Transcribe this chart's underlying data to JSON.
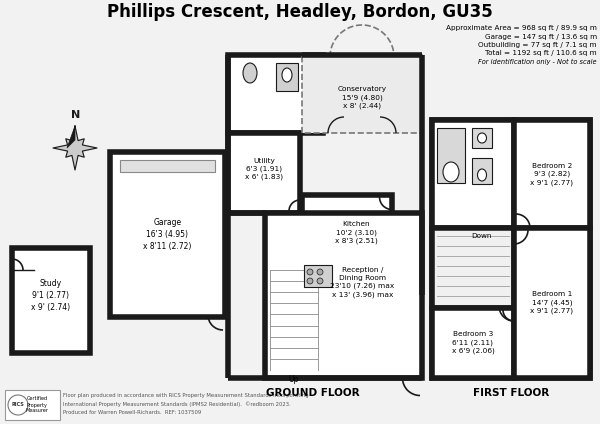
{
  "title": "Phillips Crescent, Headley, Bordon, GU35",
  "area_text": [
    "Approximate Area = 968 sq ft / 89.9 sq m",
    "Garage = 147 sq ft / 13.6 sq m",
    "Outbuilding = 77 sq ft / 7.1 sq m",
    "Total = 1192 sq ft / 110.6 sq m",
    "For identification only - Not to scale"
  ],
  "bg_color": "#f2f2f2",
  "wall_color": "#1a1a1a",
  "floor_color": "#ffffff",
  "footer_text": [
    "Floor plan produced in accordance with RICS Property Measurement Standards incorporating",
    "International Property Measurement Standards (IPMS2 Residential).  ©redboom 2023.",
    "Produced for Warren Powell-Richards.  REF: 1037509"
  ],
  "ground_floor_label": "GROUND FLOOR",
  "first_floor_label": "FIRST FLOOR"
}
